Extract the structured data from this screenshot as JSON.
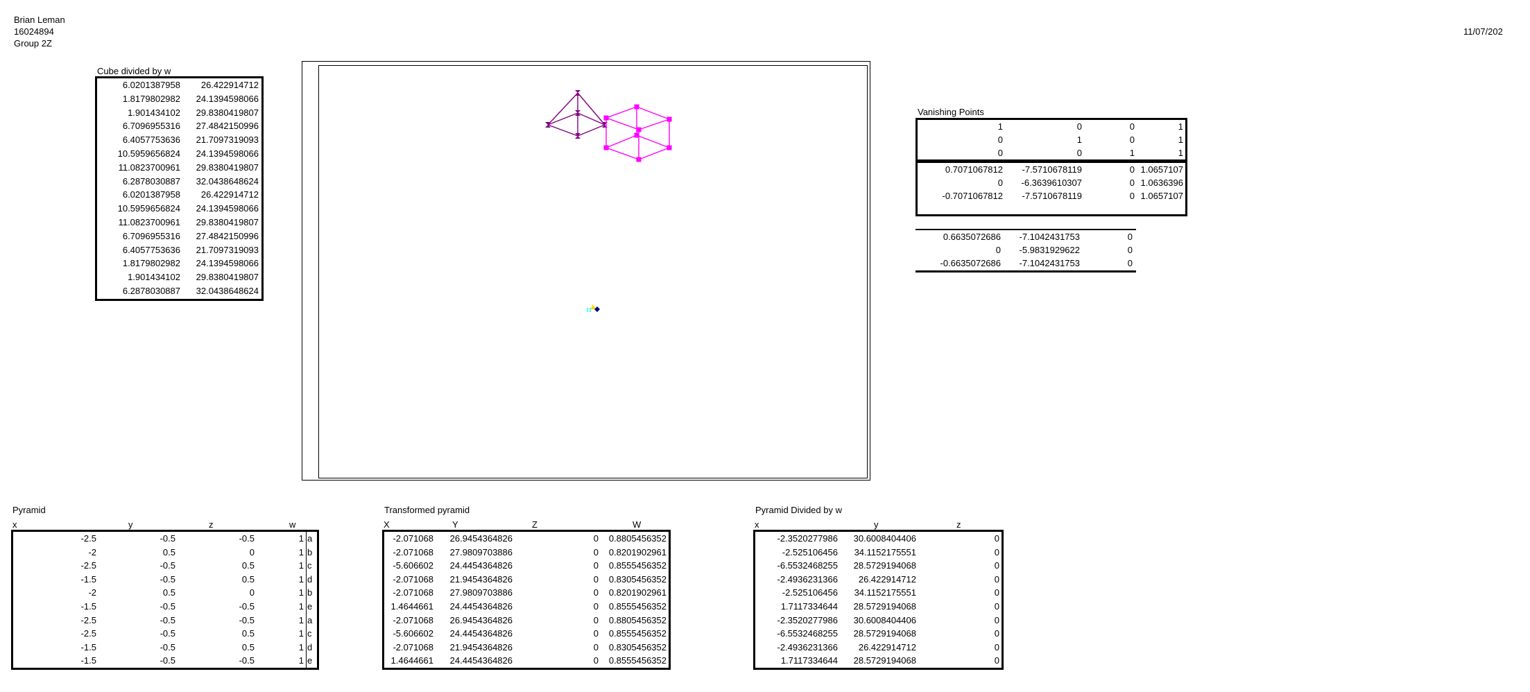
{
  "header": {
    "name": "Brian Leman",
    "student_id": "16024894",
    "group": "Group 2Z",
    "date": "11/07/202"
  },
  "cube_table": {
    "title": "Cube divided by w",
    "rows": [
      [
        "6.0201387958",
        "26.422914712"
      ],
      [
        "1.8179802982",
        "24.1394598066"
      ],
      [
        "1.901434102",
        "29.8380419807"
      ],
      [
        "6.7096955316",
        "27.4842150996"
      ],
      [
        "6.4057753636",
        "21.7097319093"
      ],
      [
        "10.5959656824",
        "24.1394598066"
      ],
      [
        "11.0823700961",
        "29.8380419807"
      ],
      [
        "6.2878030887",
        "32.0438648624"
      ],
      [
        "6.0201387958",
        "26.422914712"
      ],
      [
        "10.5959656824",
        "24.1394598066"
      ],
      [
        "11.0823700961",
        "29.8380419807"
      ],
      [
        "6.7096955316",
        "27.4842150996"
      ],
      [
        "6.4057753636",
        "21.7097319093"
      ],
      [
        "1.8179802982",
        "24.1394598066"
      ],
      [
        "1.901434102",
        "29.8380419807"
      ],
      [
        "6.2878030887",
        "32.0438648624"
      ]
    ]
  },
  "vanishing": {
    "title": "Vanishing Points",
    "matrix": [
      [
        "1",
        "0",
        "0",
        "1"
      ],
      [
        "0",
        "1",
        "0",
        "1"
      ],
      [
        "0",
        "0",
        "1",
        "1"
      ]
    ],
    "transformed": [
      [
        "0.7071067812",
        "-7.5710678119",
        "0",
        "1.0657107"
      ],
      [
        "0",
        "-6.3639610307",
        "0",
        "1.0636396"
      ],
      [
        "-0.7071067812",
        "-7.5710678119",
        "0",
        "1.0657107"
      ]
    ],
    "divided": [
      [
        "0.6635072686",
        "-7.1042431753",
        "0"
      ],
      [
        "0",
        "-5.9831929622",
        "0"
      ],
      [
        "-0.6635072686",
        "-7.1042431753",
        "0"
      ]
    ]
  },
  "pyramid": {
    "title": "Pyramid",
    "headers": [
      "x",
      "y",
      "z",
      "w"
    ],
    "rows": [
      [
        "-2.5",
        "-0.5",
        "-0.5",
        "1",
        "a"
      ],
      [
        "-2",
        "0.5",
        "0",
        "1",
        "b"
      ],
      [
        "-2.5",
        "-0.5",
        "0.5",
        "1",
        "c"
      ],
      [
        "-1.5",
        "-0.5",
        "0.5",
        "1",
        "d"
      ],
      [
        "-2",
        "0.5",
        "0",
        "1",
        "b"
      ],
      [
        "-1.5",
        "-0.5",
        "-0.5",
        "1",
        "e"
      ],
      [
        "-2.5",
        "-0.5",
        "-0.5",
        "1",
        "a"
      ],
      [
        "-2.5",
        "-0.5",
        "0.5",
        "1",
        "c"
      ],
      [
        "-1.5",
        "-0.5",
        "0.5",
        "1",
        "d"
      ],
      [
        "-1.5",
        "-0.5",
        "-0.5",
        "1",
        "e"
      ]
    ]
  },
  "transformed_pyramid": {
    "title": "Transformed pyramid",
    "headers": [
      "X",
      "Y",
      "Z",
      "W"
    ],
    "rows": [
      [
        "-2.071068",
        "26.9454364826",
        "0",
        "0.8805456352"
      ],
      [
        "-2.071068",
        "27.9809703886",
        "0",
        "0.8201902961"
      ],
      [
        "-5.606602",
        "24.4454364826",
        "0",
        "0.8555456352"
      ],
      [
        "-2.071068",
        "21.9454364826",
        "0",
        "0.8305456352"
      ],
      [
        "-2.071068",
        "27.9809703886",
        "0",
        "0.8201902961"
      ],
      [
        "1.4644661",
        "24.4454364826",
        "0",
        "0.8555456352"
      ],
      [
        "-2.071068",
        "26.9454364826",
        "0",
        "0.8805456352"
      ],
      [
        "-5.606602",
        "24.4454364826",
        "0",
        "0.8555456352"
      ],
      [
        "-2.071068",
        "21.9454364826",
        "0",
        "0.8305456352"
      ],
      [
        "1.4644661",
        "24.4454364826",
        "0",
        "0.8555456352"
      ]
    ]
  },
  "pyramid_divided": {
    "title": "Pyramid Divided by w",
    "headers": [
      "x",
      "y",
      "z"
    ],
    "rows": [
      [
        "-2.3520277986",
        "30.6008404406",
        "0"
      ],
      [
        "-2.525106456",
        "34.1152175551",
        "0"
      ],
      [
        "-6.5532468255",
        "28.5729194068",
        "0"
      ],
      [
        "-2.4936231366",
        "26.422914712",
        "0"
      ],
      [
        "-2.525106456",
        "34.1152175551",
        "0"
      ],
      [
        "1.7117334644",
        "28.5729194068",
        "0"
      ],
      [
        "-2.3520277986",
        "30.6008404406",
        "0"
      ],
      [
        "-6.5532468255",
        "28.5729194068",
        "0"
      ],
      [
        "-2.4936231366",
        "26.422914712",
        "0"
      ],
      [
        "1.7117334644",
        "28.5729194068",
        "0"
      ]
    ]
  },
  "plot": {
    "pyramid_color": "#800080",
    "cube_color": "#ff00ff",
    "marker_colors": [
      "#00ffff",
      "#ffd700",
      "#000080"
    ]
  }
}
